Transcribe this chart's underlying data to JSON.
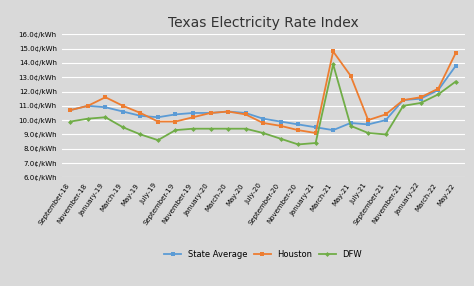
{
  "title": "Texas Electricity Rate Index",
  "background_color": "#d9d9d9",
  "plot_area_color": "#d9d9d9",
  "ylim": [
    6.0,
    16.0
  ],
  "yticks": [
    6.0,
    7.0,
    8.0,
    9.0,
    10.0,
    11.0,
    12.0,
    13.0,
    14.0,
    15.0,
    16.0
  ],
  "x_labels": [
    "September-18",
    "November-18",
    "January-19",
    "March-19",
    "May-19",
    "July-19",
    "September-19",
    "November-19",
    "January-20",
    "March-20",
    "May-20",
    "July-20",
    "September-20",
    "November-20",
    "January-21",
    "March-21",
    "May-21",
    "July-21",
    "September-21",
    "November-21",
    "January-22",
    "March-22",
    "May-22"
  ],
  "state_avg": [
    10.7,
    11.0,
    10.9,
    10.6,
    10.3,
    10.2,
    10.4,
    10.5,
    10.5,
    10.6,
    10.5,
    10.1,
    9.9,
    9.7,
    9.5,
    9.3,
    9.8,
    9.7,
    10.0,
    11.4,
    11.5,
    12.1,
    13.8
  ],
  "houston": [
    10.7,
    11.0,
    11.6,
    11.0,
    10.5,
    9.9,
    9.9,
    10.2,
    10.5,
    10.6,
    10.4,
    9.8,
    9.6,
    9.3,
    9.1,
    14.8,
    13.1,
    10.0,
    10.4,
    11.4,
    11.6,
    12.2,
    14.7
  ],
  "dfw": [
    9.9,
    10.1,
    10.2,
    9.5,
    9.0,
    8.6,
    9.3,
    9.4,
    9.4,
    9.4,
    9.4,
    9.1,
    8.7,
    8.3,
    8.4,
    13.9,
    9.6,
    9.1,
    9.0,
    11.0,
    11.2,
    11.8,
    12.7
  ],
  "state_avg_color": "#5b9bd5",
  "houston_color": "#ed7d31",
  "dfw_color": "#70ad47",
  "grid_color": "#ffffff",
  "line_width": 1.3,
  "marker_size": 3.0,
  "title_fontsize": 10,
  "tick_fontsize": 5.0,
  "legend_fontsize": 6.0
}
